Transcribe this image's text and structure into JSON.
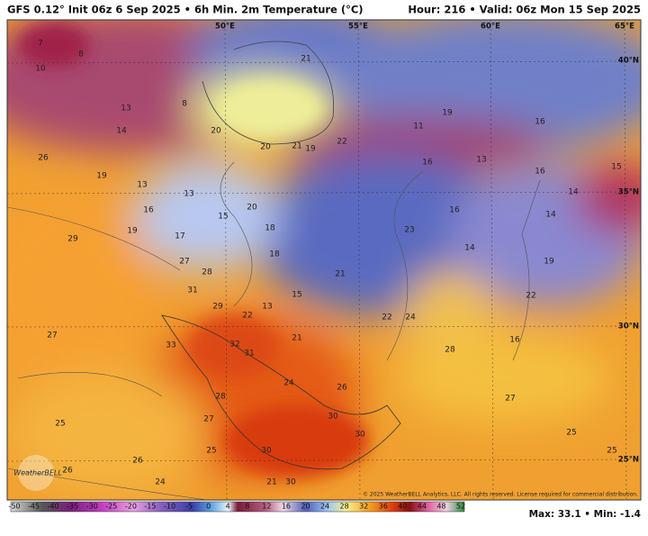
{
  "header": {
    "left": "GFS 0.12° Init 06z 6 Sep 2025 • 6h Min. 2m Temperature (°C)",
    "right": "Hour: 216 • Valid: 06z Mon 15 Sep 2025"
  },
  "map": {
    "longitudes": [
      "50°E",
      "55°E",
      "60°E",
      "65°E"
    ],
    "latitudes": [
      "40°N",
      "35°N",
      "30°N",
      "25°N"
    ],
    "labels": [
      7,
      10,
      8,
      13,
      14,
      8,
      20,
      21,
      19,
      22,
      21,
      20,
      11,
      16,
      19,
      13,
      16,
      16,
      15,
      14,
      14,
      16,
      14,
      23,
      19,
      22,
      18,
      18,
      15,
      21,
      22,
      24,
      21,
      16,
      28,
      27,
      25,
      25,
      26,
      26,
      19,
      13,
      13,
      15,
      16,
      17,
      19,
      20,
      29,
      27,
      28,
      31,
      29,
      22,
      13,
      27,
      33,
      32,
      31,
      24,
      28,
      27,
      30,
      30,
      30,
      25,
      25,
      26,
      26,
      24,
      21,
      30
    ],
    "copyright": "© 2025 WeatherBELL Analytics, LLC. All rights reserved. License required for commercial distribution.",
    "logo": "WeatherBELL"
  },
  "colorbar": {
    "ticks": [
      -50,
      -45,
      -40,
      -35,
      -30,
      -25,
      -20,
      -15,
      -10,
      -5,
      0,
      4,
      8,
      12,
      16,
      20,
      24,
      28,
      32,
      36,
      40,
      44,
      48,
      52
    ]
  },
  "footer": {
    "stats": "Max: 33.1 • Min: -1.4"
  }
}
